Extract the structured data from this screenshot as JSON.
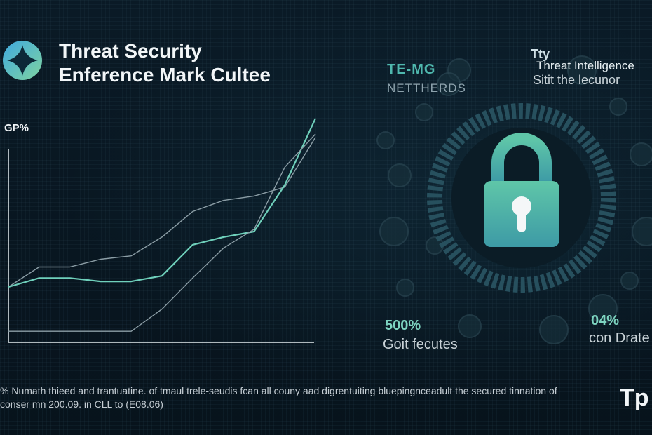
{
  "header": {
    "title_line1": "Threat Security",
    "title_line2": "Enference  Mark Cultee",
    "logo_icon": "diamond-logo-icon"
  },
  "chart_data": {
    "type": "line",
    "ylabel": "GP%",
    "x": [
      0,
      1,
      2,
      3,
      4,
      5,
      6,
      7,
      8,
      9,
      10
    ],
    "series": [
      {
        "values": [
          10,
          28,
          28,
          35,
          38,
          55,
          78,
          88,
          92,
          100,
          145
        ]
      },
      {
        "values": [
          10,
          18,
          18,
          15,
          15,
          20,
          48,
          55,
          60,
          102,
          162
        ]
      },
      {
        "values": [
          -30,
          -30,
          -30,
          -30,
          -30,
          -10,
          18,
          45,
          62,
          118,
          148
        ]
      }
    ],
    "colors": [
      "#8c9ea6",
      "#6fd0bb",
      "#8c9ea6"
    ],
    "grid": false
  },
  "caption": {
    "line1": "% Numath thieed and trantuatine. of tmaul trele-seudis fcan all couny aad digrentuiting bluepingnceadult the secured tinnation of",
    "line2": "conser mn 200.09. in CLL to (E08.06)"
  },
  "right_panel": {
    "code": "TE-MG",
    "code_sub": "NETTHERDS",
    "head": "Tty",
    "intel_title": "Threat Intelligence",
    "intel_sub": "Sitit the lecunor",
    "stat_left_value": "500%",
    "stat_left_label": "Goit fecutes",
    "stat_right_value": "04%",
    "stat_right_label": "con Drate",
    "corner_text": "Tp",
    "lock_icon": "padlock-icon",
    "accent": "#5ec4a8"
  }
}
